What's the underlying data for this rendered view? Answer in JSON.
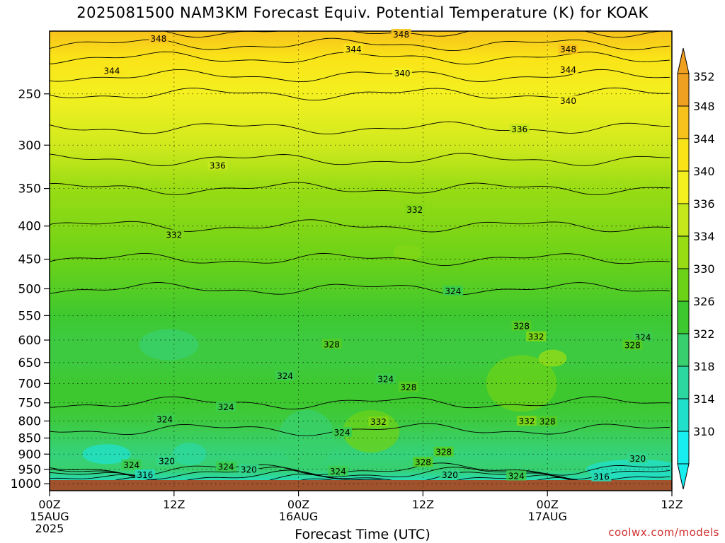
{
  "title": "2025081500 NAM3KM Forecast Equiv. Potential Temperature (K) for KOAK",
  "credit": "coolwx.com/models",
  "chart_data": {
    "type": "heatmap",
    "title": "2025081500 NAM3KM Forecast Equiv. Potential Temperature (K) for KOAK",
    "xlabel": "Forecast Time (UTC)",
    "ylabel": "",
    "x_range_hours": [
      0,
      60
    ],
    "y_range_hPa": [
      1025,
      200
    ],
    "y_scale": "log-pressure (inverted)",
    "grid": true,
    "x_ticks": [
      {
        "hour": 0,
        "label": "00Z",
        "sub1": "15AUG",
        "sub2": "2025"
      },
      {
        "hour": 12,
        "label": "12Z",
        "sub1": "",
        "sub2": ""
      },
      {
        "hour": 24,
        "label": "00Z",
        "sub1": "16AUG",
        "sub2": ""
      },
      {
        "hour": 36,
        "label": "12Z",
        "sub1": "",
        "sub2": ""
      },
      {
        "hour": 48,
        "label": "00Z",
        "sub1": "17AUG",
        "sub2": ""
      },
      {
        "hour": 60,
        "label": "12Z",
        "sub1": "",
        "sub2": ""
      }
    ],
    "y_ticks": [
      250,
      300,
      350,
      400,
      450,
      500,
      550,
      600,
      650,
      700,
      750,
      800,
      850,
      900,
      950,
      1000
    ],
    "colorbar": {
      "labels": [
        352,
        348,
        344,
        340,
        336,
        334,
        330,
        326,
        322,
        318,
        314,
        310
      ],
      "colors": [
        "#f0a020",
        "#f7c21c",
        "#fae418",
        "#f4f020",
        "#c4e81c",
        "#98dc14",
        "#6cd218",
        "#3ec830",
        "#38d06e",
        "#2cd8a0",
        "#20e0cc",
        "#18eef0"
      ]
    },
    "ground_color": "#a0522d",
    "vertical_profile_K": [
      {
        "p": 1000,
        "theta_e": 314
      },
      {
        "p": 950,
        "theta_e": 322
      },
      {
        "p": 900,
        "theta_e": 321
      },
      {
        "p": 850,
        "theta_e": 323
      },
      {
        "p": 800,
        "theta_e": 325
      },
      {
        "p": 750,
        "theta_e": 326
      },
      {
        "p": 700,
        "theta_e": 326
      },
      {
        "p": 650,
        "theta_e": 325
      },
      {
        "p": 600,
        "theta_e": 325
      },
      {
        "p": 550,
        "theta_e": 326
      },
      {
        "p": 500,
        "theta_e": 328
      },
      {
        "p": 450,
        "theta_e": 330
      },
      {
        "p": 400,
        "theta_e": 332
      },
      {
        "p": 350,
        "theta_e": 334
      },
      {
        "p": 300,
        "theta_e": 337
      },
      {
        "p": 250,
        "theta_e": 340
      },
      {
        "p": 220,
        "theta_e": 344
      },
      {
        "p": 200,
        "theta_e": 348
      }
    ],
    "contour_labels": [
      {
        "text": "348",
        "hour": 10.5,
        "p": 205
      },
      {
        "text": "348",
        "hour": 33.9,
        "p": 202
      },
      {
        "text": "344",
        "hour": 29.3,
        "p": 213
      },
      {
        "text": "348",
        "hour": 50.0,
        "p": 213
      },
      {
        "text": "344",
        "hour": 6.0,
        "p": 230
      },
      {
        "text": "340",
        "hour": 34.0,
        "p": 232
      },
      {
        "text": "344",
        "hour": 50.0,
        "p": 229
      },
      {
        "text": "340",
        "hour": 50.0,
        "p": 256
      },
      {
        "text": "336",
        "hour": 45.3,
        "p": 283
      },
      {
        "text": "336",
        "hour": 16.2,
        "p": 322
      },
      {
        "text": "332",
        "hour": 35.2,
        "p": 377
      },
      {
        "text": "332",
        "hour": 12.0,
        "p": 412
      },
      {
        "text": "324",
        "hour": 38.9,
        "p": 503
      },
      {
        "text": "328",
        "hour": 45.5,
        "p": 570
      },
      {
        "text": "332",
        "hour": 46.9,
        "p": 592
      },
      {
        "text": "324",
        "hour": 57.2,
        "p": 593
      },
      {
        "text": "328",
        "hour": 27.2,
        "p": 608
      },
      {
        "text": "328",
        "hour": 56.2,
        "p": 610
      },
      {
        "text": "324",
        "hour": 22.7,
        "p": 680
      },
      {
        "text": "324",
        "hour": 32.4,
        "p": 688
      },
      {
        "text": "328",
        "hour": 34.6,
        "p": 708
      },
      {
        "text": "324",
        "hour": 17.0,
        "p": 760
      },
      {
        "text": "324",
        "hour": 11.1,
        "p": 794
      },
      {
        "text": "332",
        "hour": 31.7,
        "p": 801
      },
      {
        "text": "332",
        "hour": 46.0,
        "p": 799
      },
      {
        "text": "328",
        "hour": 48.0,
        "p": 800
      },
      {
        "text": "324",
        "hour": 28.2,
        "p": 832
      },
      {
        "text": "328",
        "hour": 38.0,
        "p": 892
      },
      {
        "text": "320",
        "hour": 11.3,
        "p": 921
      },
      {
        "text": "320",
        "hour": 56.7,
        "p": 913
      },
      {
        "text": "324",
        "hour": 7.9,
        "p": 934
      },
      {
        "text": "324",
        "hour": 17.0,
        "p": 940
      },
      {
        "text": "320",
        "hour": 19.2,
        "p": 949
      },
      {
        "text": "328",
        "hour": 36.0,
        "p": 925
      },
      {
        "text": "324",
        "hour": 27.8,
        "p": 955
      },
      {
        "text": "320",
        "hour": 38.6,
        "p": 967
      },
      {
        "text": "324",
        "hour": 45.0,
        "p": 971
      },
      {
        "text": "316",
        "hour": 9.2,
        "p": 967
      },
      {
        "text": "316",
        "hour": 53.2,
        "p": 974
      }
    ]
  }
}
